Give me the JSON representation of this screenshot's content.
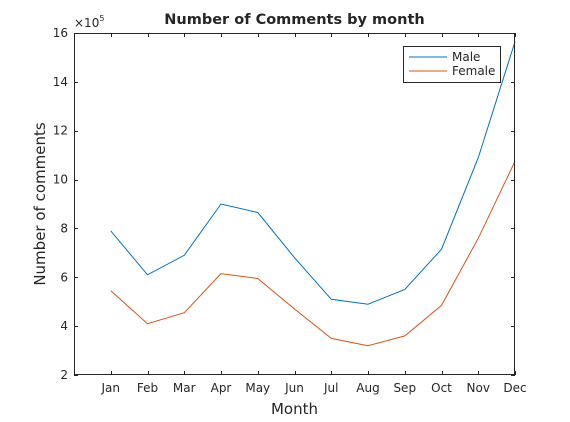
{
  "chart_data": {
    "type": "line",
    "title": "Number of Comments by month",
    "xlabel": "Month",
    "ylabel": "Number of comments",
    "categories": [
      "Jan",
      "Feb",
      "Mar",
      "Apr",
      "May",
      "Jun",
      "Jul",
      "Aug",
      "Sep",
      "Oct",
      "Nov",
      "Dec"
    ],
    "ylim": [
      2,
      16
    ],
    "yticks": [
      "2",
      "4",
      "6",
      "8",
      "10",
      "12",
      "14",
      "16"
    ],
    "y_exponent": {
      "base": "×10",
      "power": "5"
    },
    "grid": false,
    "legend": {
      "location": "top-right"
    },
    "series": [
      {
        "name": "Male",
        "color": "#0072BD",
        "values": [
          7.9,
          6.1,
          6.9,
          9.0,
          8.65,
          6.8,
          5.1,
          4.9,
          5.5,
          7.15,
          10.9,
          15.65
        ]
      },
      {
        "name": "Female",
        "color": "#D95319",
        "values": [
          5.45,
          4.1,
          4.55,
          6.15,
          5.95,
          4.7,
          3.5,
          3.2,
          3.6,
          4.85,
          7.6,
          10.75
        ]
      }
    ]
  }
}
